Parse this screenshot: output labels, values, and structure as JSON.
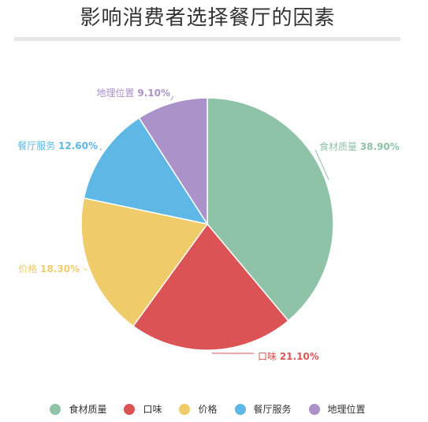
{
  "chart_data": {
    "type": "pie",
    "title": "影响消费者选择餐厅的因素",
    "slices": [
      {
        "name": "食材质量",
        "value": 38.9,
        "label": "38.90%",
        "color": "#8ec3a7"
      },
      {
        "name": "口味",
        "value": 21.1,
        "label": "21.10%",
        "color": "#dc5356"
      },
      {
        "name": "价格",
        "value": 18.3,
        "label": "18.30%",
        "color": "#f0cb69"
      },
      {
        "name": "餐厅服务",
        "value": 12.6,
        "label": "12.60%",
        "color": "#5fb7e5"
      },
      {
        "name": "地理位置",
        "value": 9.1,
        "label": "9.10%",
        "color": "#ab92c8"
      }
    ],
    "legend_position": "bottom"
  }
}
